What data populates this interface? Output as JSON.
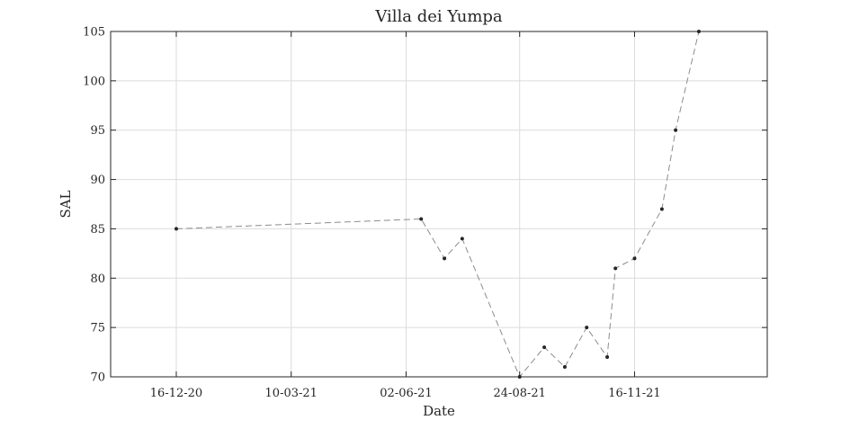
{
  "chart_data": {
    "type": "line",
    "title": "Villa dei Yumpa",
    "xlabel": "Date",
    "ylabel": "SAL",
    "x_type": "date",
    "x_tick_format": "DD-MM-YY",
    "xlim": [
      "2020-10-29",
      "2022-02-21"
    ],
    "ylim": [
      70,
      105
    ],
    "x_ticks": [
      "2020-12-16",
      "2021-03-10",
      "2021-06-02",
      "2021-08-24",
      "2021-11-16"
    ],
    "x_tick_labels": [
      "16-12-20",
      "10-03-21",
      "02-06-21",
      "24-08-21",
      "16-11-21"
    ],
    "y_ticks": [
      70,
      75,
      80,
      85,
      90,
      95,
      100,
      105
    ],
    "y_tick_labels": [
      "70",
      "75",
      "80",
      "85",
      "90",
      "95",
      "100",
      "105"
    ],
    "grid": true,
    "series": [
      {
        "line_style": "dashed",
        "marker": "dot",
        "color": "#8c8c8c",
        "marker_color": "#262626",
        "points": [
          {
            "x": "2020-12-16",
            "y": 85
          },
          {
            "x": "2021-06-13",
            "y": 86
          },
          {
            "x": "2021-06-30",
            "y": 82
          },
          {
            "x": "2021-07-13",
            "y": 84
          },
          {
            "x": "2021-08-24",
            "y": 70
          },
          {
            "x": "2021-09-11",
            "y": 73
          },
          {
            "x": "2021-09-26",
            "y": 71
          },
          {
            "x": "2021-10-12",
            "y": 75
          },
          {
            "x": "2021-10-27",
            "y": 72
          },
          {
            "x": "2021-11-02",
            "y": 81
          },
          {
            "x": "2021-11-16",
            "y": 82
          },
          {
            "x": "2021-12-06",
            "y": 87
          },
          {
            "x": "2021-12-16",
            "y": 95
          },
          {
            "x": "2022-01-02",
            "y": 105
          }
        ]
      }
    ]
  }
}
